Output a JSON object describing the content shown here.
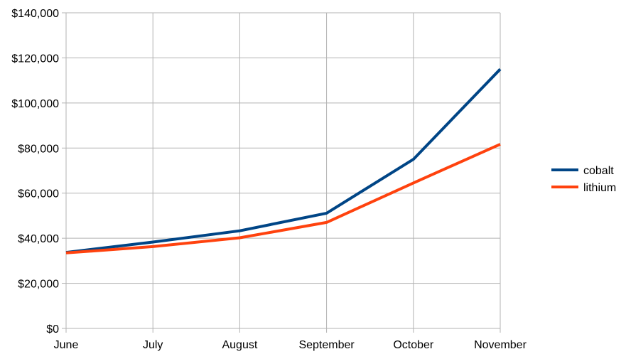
{
  "chart_data": {
    "type": "line",
    "title": "",
    "xlabel": "",
    "ylabel": "",
    "categories": [
      "June",
      "July",
      "August",
      "September",
      "October",
      "November"
    ],
    "y_ticks": [
      "$0",
      "$20,000",
      "$40,000",
      "$60,000",
      "$80,000",
      "$100,000",
      "$120,000",
      "$140,000"
    ],
    "ylim": [
      0,
      140000
    ],
    "grid": true,
    "legend_position": "right",
    "series": [
      {
        "name": "cobalt",
        "color": "#004586",
        "values": [
          33700,
          38300,
          43300,
          51100,
          75000,
          115000
        ]
      },
      {
        "name": "lithium",
        "color": "#ff420e",
        "values": [
          33500,
          36300,
          40200,
          47000,
          64500,
          81700
        ]
      }
    ]
  }
}
